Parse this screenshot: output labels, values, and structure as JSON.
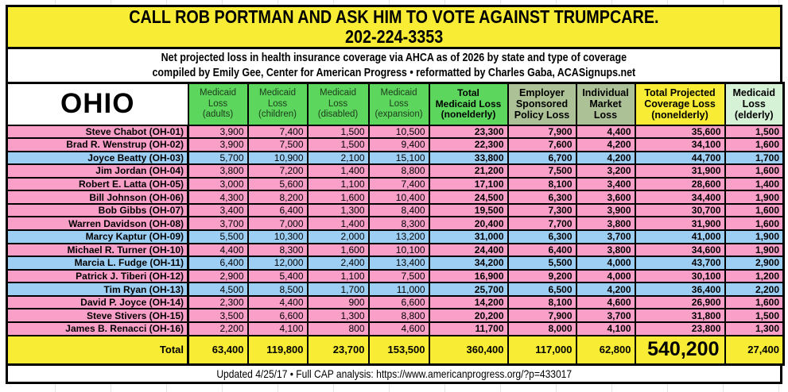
{
  "banner": {
    "line1": "CALL ROB PORTMAN AND ASK HIM TO VOTE AGAINST TRUMPCARE.",
    "line2": "202-224-3353"
  },
  "subtitle": {
    "line1": "Net projected loss in health insurance coverage via AHCA as of 2026 by state and type of coverage",
    "line2": "compiled by Emily Gee, Center for American Progress  •  reformatted by Charles Gaba, ACASignups.net"
  },
  "table": {
    "state_label": "OHIO",
    "columns": [
      {
        "id": "medicaid-adults",
        "lines": [
          "Medicaid",
          "Loss",
          "(adults)"
        ],
        "bg": "green",
        "bold": false
      },
      {
        "id": "medicaid-children",
        "lines": [
          "Medicaid",
          "Loss",
          "(children)"
        ],
        "bg": "green",
        "bold": false
      },
      {
        "id": "medicaid-disabled",
        "lines": [
          "Medicaid",
          "Loss",
          "(disabled)"
        ],
        "bg": "green",
        "bold": false
      },
      {
        "id": "medicaid-expansion",
        "lines": [
          "Medicaid",
          "Loss",
          "(expansion)"
        ],
        "bg": "green",
        "bold": false
      },
      {
        "id": "total-medicaid",
        "lines": [
          "Total",
          "Medicaid Loss",
          "(nonelderly)"
        ],
        "bg": "green",
        "bold": true
      },
      {
        "id": "employer-sponsored",
        "lines": [
          "Employer",
          "Sponsored",
          "Policy Loss"
        ],
        "bg": "sage",
        "bold": true
      },
      {
        "id": "individual-market",
        "lines": [
          "Individual",
          "Market",
          "Loss"
        ],
        "bg": "sage",
        "bold": true
      },
      {
        "id": "total-projected",
        "lines": [
          "Total Projected",
          "Coverage Loss",
          "(nonelderly)"
        ],
        "bg": "yellow",
        "bold": true
      },
      {
        "id": "medicaid-elderly",
        "lines": [
          "Medicaid",
          "Loss",
          "(elderly)"
        ],
        "bg": "mint",
        "bold": true
      }
    ]
  },
  "chart_data": {
    "type": "table",
    "title": "OHIO",
    "column_names": [
      "Medicaid Loss (adults)",
      "Medicaid Loss (children)",
      "Medicaid Loss (disabled)",
      "Medicaid Loss (expansion)",
      "Total Medicaid Loss (nonelderly)",
      "Employer Sponsored Policy Loss",
      "Individual Market Loss",
      "Total Projected Coverage Loss (nonelderly)",
      "Medicaid Loss (elderly)"
    ],
    "rows": [
      {
        "district": "Steve Chabot (OH-01)",
        "row_color": "pink",
        "values": [
          3900,
          7400,
          1500,
          10500,
          23300,
          7900,
          4400,
          35600,
          1500
        ]
      },
      {
        "district": "Brad R. Wenstrup (OH-02)",
        "row_color": "pink",
        "values": [
          3900,
          7500,
          1500,
          9400,
          22300,
          7600,
          4200,
          34100,
          1600
        ]
      },
      {
        "district": "Joyce Beatty (OH-03)",
        "row_color": "blue",
        "values": [
          5700,
          10900,
          2100,
          15100,
          33800,
          6700,
          4200,
          44700,
          1700
        ]
      },
      {
        "district": "Jim Jordan (OH-04)",
        "row_color": "pink",
        "values": [
          3800,
          7200,
          1400,
          8800,
          21200,
          7500,
          3200,
          31900,
          1600
        ]
      },
      {
        "district": "Robert E. Latta (OH-05)",
        "row_color": "pink",
        "values": [
          3000,
          5600,
          1100,
          7400,
          17100,
          8100,
          3400,
          28600,
          1400
        ]
      },
      {
        "district": "Bill Johnson (OH-06)",
        "row_color": "pink",
        "values": [
          4300,
          8200,
          1600,
          10400,
          24500,
          6300,
          3600,
          34400,
          1900
        ]
      },
      {
        "district": "Bob Gibbs (OH-07)",
        "row_color": "pink",
        "values": [
          3400,
          6400,
          1300,
          8400,
          19500,
          7300,
          3900,
          30700,
          1600
        ]
      },
      {
        "district": "Warren Davidson (OH-08)",
        "row_color": "pink",
        "values": [
          3700,
          7000,
          1400,
          8300,
          20400,
          7700,
          3800,
          31900,
          1600
        ]
      },
      {
        "district": "Marcy Kaptur (OH-09)",
        "row_color": "blue",
        "values": [
          5500,
          10300,
          2000,
          13200,
          31000,
          6300,
          3700,
          41000,
          1900
        ]
      },
      {
        "district": "Michael R. Turner (OH-10)",
        "row_color": "pink",
        "values": [
          4400,
          8300,
          1600,
          10100,
          24400,
          6400,
          3800,
          34600,
          1900
        ]
      },
      {
        "district": "Marcia L. Fudge (OH-11)",
        "row_color": "blue",
        "values": [
          6400,
          12000,
          2400,
          13400,
          34200,
          5500,
          4000,
          43700,
          2900
        ]
      },
      {
        "district": "Patrick J. Tiberi (OH-12)",
        "row_color": "pink",
        "values": [
          2900,
          5400,
          1100,
          7500,
          16900,
          9200,
          4000,
          30100,
          1200
        ]
      },
      {
        "district": "Tim Ryan (OH-13)",
        "row_color": "blue",
        "values": [
          4500,
          8500,
          1700,
          11000,
          25700,
          6500,
          4200,
          36400,
          2200
        ]
      },
      {
        "district": "David P. Joyce (OH-14)",
        "row_color": "pink",
        "values": [
          2300,
          4400,
          900,
          6600,
          14200,
          8100,
          4600,
          26900,
          1600
        ]
      },
      {
        "district": "Steve Stivers (OH-15)",
        "row_color": "pink",
        "values": [
          3500,
          6600,
          1300,
          8800,
          20200,
          7900,
          3700,
          31800,
          1500
        ]
      },
      {
        "district": "James B. Renacci (OH-16)",
        "row_color": "pink",
        "values": [
          2200,
          4100,
          800,
          4600,
          11700,
          8000,
          4100,
          23800,
          1300
        ]
      }
    ],
    "total": {
      "label": "Total",
      "row_color": "yellow",
      "values": [
        63400,
        119800,
        23700,
        153500,
        360400,
        117000,
        62800,
        540200,
        27400
      ]
    }
  },
  "footer": {
    "text": "Updated 4/25/17  •  Full CAP analysis: https://www.americanprogress.org/?p=433017"
  },
  "colors": {
    "banner_yellow": "#F8EC34",
    "header_green": "#5CD65C",
    "header_sage": "#ACC296",
    "header_mint": "#D6F2D6",
    "row_pink": "#FA9FC8",
    "row_blue": "#9DCFF5",
    "total_yellow": "#F8EC34",
    "border_black": "#000000"
  }
}
